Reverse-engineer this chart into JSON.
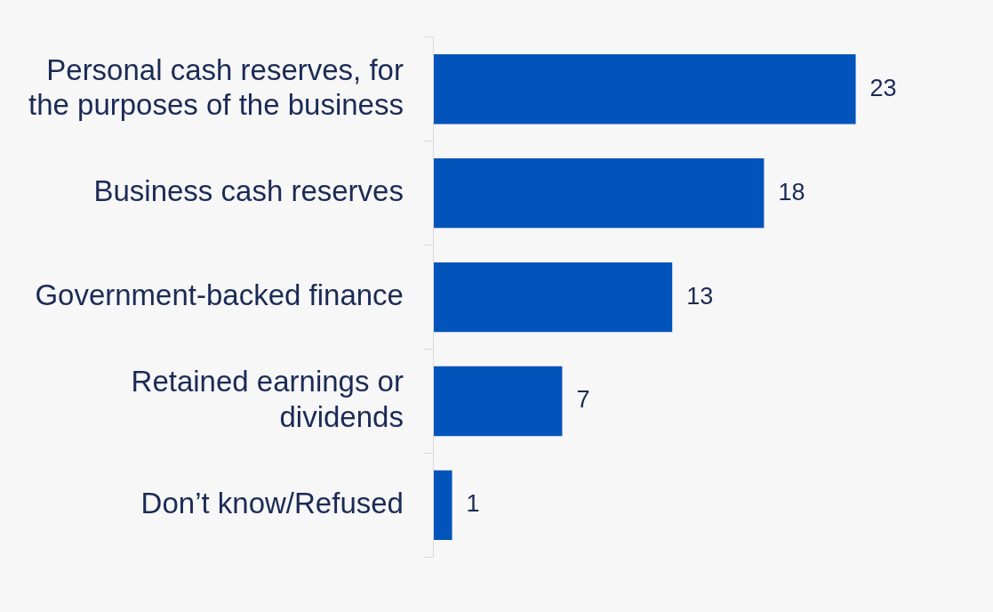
{
  "chart_data": {
    "type": "bar",
    "orientation": "horizontal",
    "categories": [
      "Personal cash reserves, for the purposes of the business",
      "Business cash reserves",
      "Government-backed finance",
      "Retained earnings or dividends",
      "Don’t know/Refused"
    ],
    "values": [
      23,
      18,
      13,
      7,
      1
    ],
    "color": "#0254bb",
    "data_labels": true
  }
}
